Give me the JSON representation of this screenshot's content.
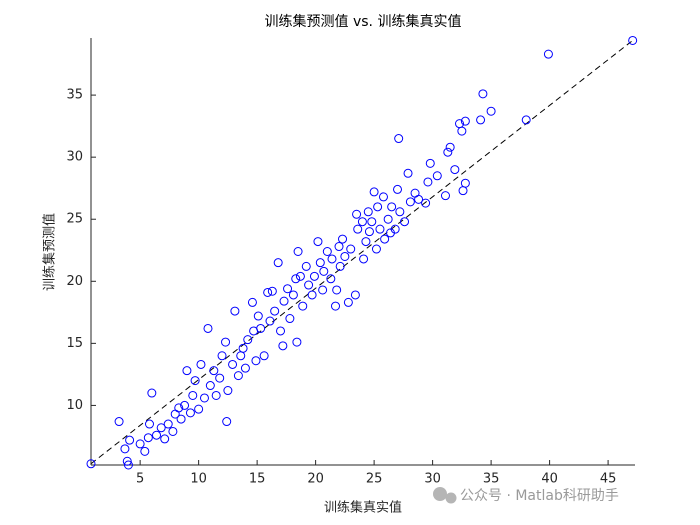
{
  "chart_data": {
    "type": "scatter",
    "title": "训练集预测值 vs. 训练集真实值",
    "x_label": "训练集真实值",
    "y_label": "训练集预测值",
    "watermark": "公众号 · Matlab科研助手",
    "color": "#0000ff",
    "xlim": [
      0.8,
      47.3
    ],
    "ylim": [
      5.2,
      39.6
    ],
    "xticks": [
      5,
      10,
      15,
      20,
      25,
      30,
      35,
      40,
      45
    ],
    "yticks": [
      10,
      15,
      20,
      25,
      30,
      35
    ],
    "reference_line": {
      "x": [
        0.8,
        47.1
      ],
      "y": [
        5.3,
        39.4
      ]
    },
    "x": [
      0.8,
      3.2,
      3.7,
      3.9,
      4.0,
      4.1,
      5.0,
      5.4,
      5.7,
      6.0,
      5.8,
      6.4,
      6.8,
      7.1,
      7.4,
      7.8,
      8.0,
      8.3,
      8.5,
      8.8,
      9.0,
      9.3,
      9.5,
      9.7,
      10.0,
      10.2,
      10.5,
      10.8,
      11.0,
      11.3,
      11.5,
      11.8,
      12.0,
      12.3,
      12.4,
      12.5,
      12.9,
      13.1,
      13.4,
      13.6,
      13.8,
      14.0,
      14.2,
      14.6,
      14.7,
      14.9,
      15.1,
      15.3,
      15.6,
      15.9,
      16.1,
      16.3,
      16.5,
      16.8,
      17.0,
      17.2,
      17.3,
      17.6,
      17.8,
      18.1,
      18.3,
      18.4,
      18.5,
      18.7,
      18.9,
      19.2,
      19.4,
      19.7,
      19.9,
      20.2,
      20.4,
      20.6,
      20.7,
      21.0,
      21.3,
      21.4,
      21.7,
      21.8,
      22.0,
      22.1,
      22.3,
      22.5,
      22.8,
      23.0,
      23.4,
      23.5,
      23.6,
      24.0,
      24.1,
      24.3,
      24.5,
      24.6,
      24.8,
      25.0,
      25.2,
      25.3,
      25.5,
      25.8,
      25.9,
      26.2,
      26.4,
      26.5,
      26.8,
      27.0,
      27.1,
      27.2,
      27.6,
      27.9,
      28.1,
      28.5,
      28.8,
      29.4,
      29.6,
      29.8,
      30.4,
      31.1,
      31.3,
      31.5,
      31.9,
      32.3,
      32.5,
      32.6,
      32.8,
      32.8,
      34.1,
      34.3,
      35.0,
      38.0,
      39.9,
      47.1
    ],
    "y": [
      5.3,
      8.7,
      6.5,
      5.5,
      5.2,
      7.2,
      6.9,
      6.3,
      7.4,
      11.0,
      8.5,
      7.6,
      8.2,
      7.3,
      8.5,
      7.9,
      9.3,
      9.8,
      8.9,
      10.0,
      12.8,
      9.4,
      10.8,
      12.0,
      9.7,
      13.3,
      10.6,
      16.2,
      11.6,
      12.8,
      10.8,
      12.2,
      14.0,
      15.1,
      8.7,
      11.2,
      13.3,
      17.6,
      12.4,
      14.0,
      14.6,
      13.0,
      15.3,
      18.3,
      16.0,
      13.6,
      17.2,
      16.2,
      14.0,
      19.1,
      16.8,
      19.2,
      17.6,
      21.5,
      16.0,
      14.8,
      18.4,
      19.4,
      17.0,
      18.9,
      20.2,
      15.1,
      22.4,
      20.4,
      18.0,
      21.2,
      19.7,
      18.9,
      20.4,
      23.2,
      21.5,
      19.3,
      20.8,
      22.4,
      20.2,
      21.8,
      18.0,
      19.3,
      22.8,
      21.2,
      23.4,
      22.0,
      18.3,
      22.6,
      18.9,
      25.4,
      24.2,
      24.8,
      21.8,
      23.2,
      25.6,
      24.0,
      24.8,
      27.2,
      22.6,
      26.0,
      24.2,
      26.8,
      23.4,
      25.0,
      23.9,
      26.0,
      24.2,
      27.4,
      31.5,
      25.6,
      24.8,
      28.7,
      26.4,
      27.1,
      26.6,
      26.3,
      28.0,
      29.5,
      28.5,
      26.9,
      30.4,
      30.8,
      29.0,
      32.7,
      32.1,
      27.3,
      27.9,
      32.9,
      33.0,
      35.1,
      33.7,
      33.0,
      38.3,
      39.4
    ]
  }
}
